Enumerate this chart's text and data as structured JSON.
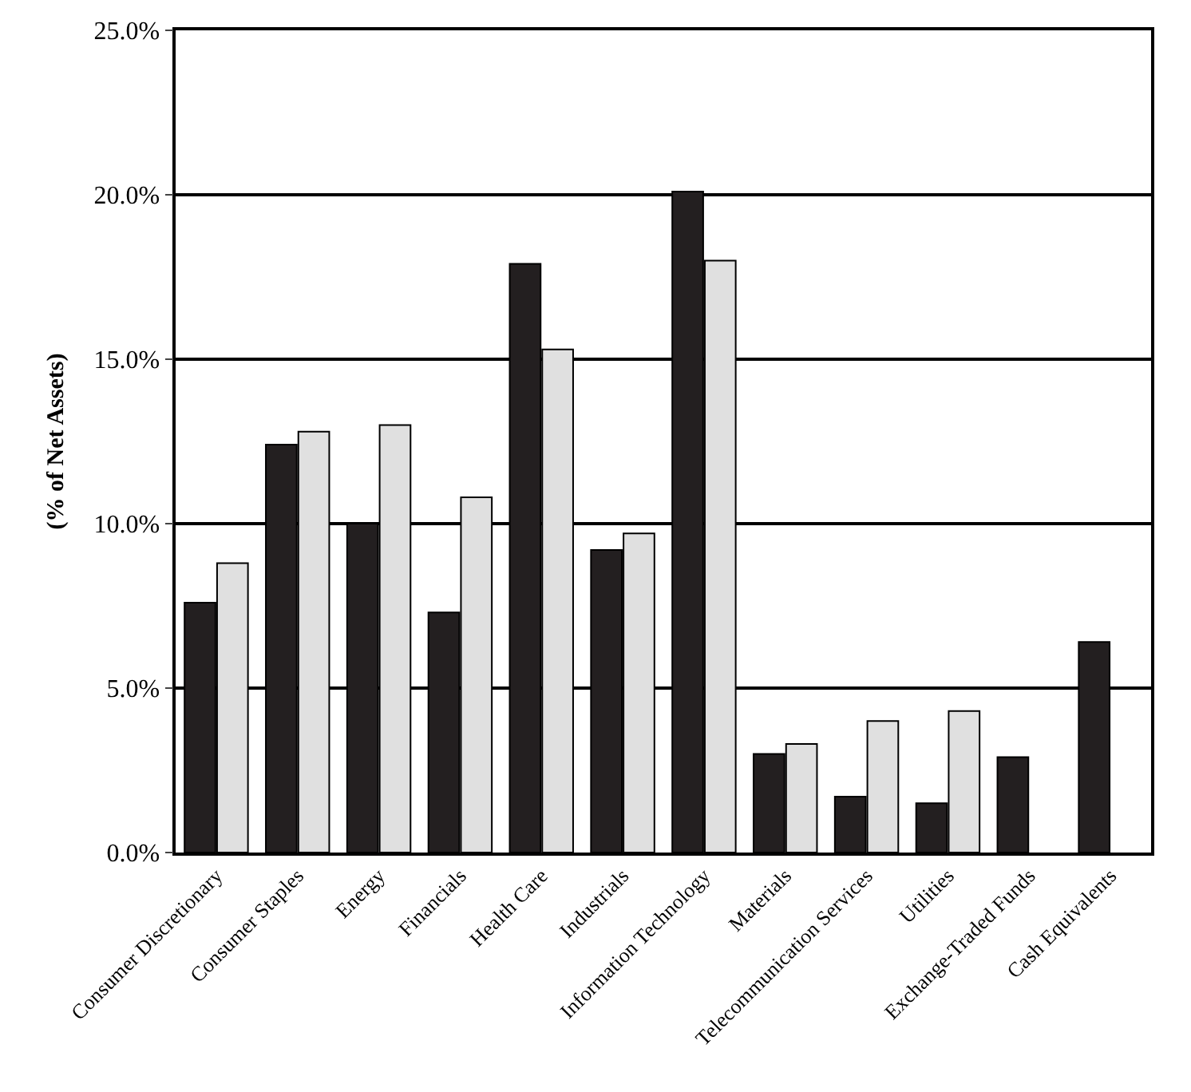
{
  "chart_data": {
    "type": "bar",
    "ylabel": "(% of Net Assets)",
    "categories": [
      "Consumer Discretionary",
      "Consumer Staples",
      "Energy",
      "Financials",
      "Health Care",
      "Industrials",
      "Information Technology",
      "Materials",
      "Telecommunication Services",
      "Utilities",
      "Exchange-Traded Funds",
      "Cash Equivalents"
    ],
    "series": [
      {
        "color": "#231f20",
        "values": [
          7.6,
          12.4,
          10.0,
          7.3,
          17.9,
          9.2,
          20.1,
          3.0,
          1.7,
          1.5,
          2.9,
          6.4
        ]
      },
      {
        "color": "#e0e0e0",
        "values": [
          8.8,
          12.8,
          13.0,
          10.8,
          15.3,
          9.7,
          18.0,
          3.3,
          4.0,
          4.3,
          null,
          null
        ]
      }
    ],
    "ylim": [
      0,
      25
    ],
    "yticks": [
      {
        "value": 0,
        "label": "0.0%"
      },
      {
        "value": 5,
        "label": "5.0%"
      },
      {
        "value": 10,
        "label": "10.0%"
      },
      {
        "value": 15,
        "label": "15.0%"
      },
      {
        "value": 20,
        "label": "20.0%"
      },
      {
        "value": 25,
        "label": "25.0%"
      }
    ],
    "grid": "y"
  }
}
